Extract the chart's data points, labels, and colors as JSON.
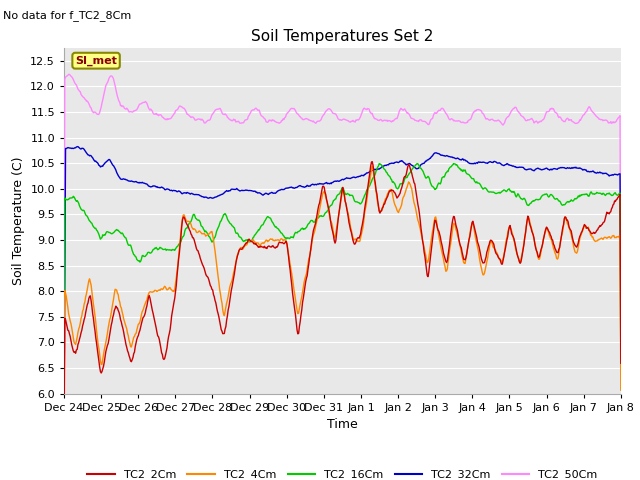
{
  "title": "Soil Temperatures Set 2",
  "subtitle": "No data for f_TC2_8Cm",
  "xlabel": "Time",
  "ylabel": "Soil Temperature (C)",
  "ylim": [
    6.0,
    12.75
  ],
  "yticks": [
    6.0,
    6.5,
    7.0,
    7.5,
    8.0,
    8.5,
    9.0,
    9.5,
    10.0,
    10.5,
    11.0,
    11.5,
    12.0,
    12.5
  ],
  "x_tick_labels": [
    "Dec 24",
    "Dec 25",
    "Dec 26",
    "Dec 27",
    "Dec 28",
    "Dec 29",
    "Dec 30",
    "Dec 31",
    "Jan 1",
    "Jan 2",
    "Jan 3",
    "Jan 4",
    "Jan 5",
    "Jan 6",
    "Jan 7",
    "Jan 8"
  ],
  "series_colors": {
    "TC2_2Cm": "#cc0000",
    "TC2_4Cm": "#ff8800",
    "TC2_16Cm": "#00cc00",
    "TC2_32Cm": "#0000cc",
    "TC2_50Cm": "#ff88ff"
  },
  "legend_labels": [
    "TC2_2Cm",
    "TC2_4Cm",
    "TC2_16Cm",
    "TC2_32Cm",
    "TC2_50Cm"
  ],
  "annotation_text": "SI_met",
  "annotation_bg": "#ffff88",
  "annotation_border": "#888800",
  "plot_bg": "#e8e8e8",
  "grid_color": "#ffffff",
  "title_fontsize": 11,
  "axis_fontsize": 9,
  "tick_fontsize": 8
}
